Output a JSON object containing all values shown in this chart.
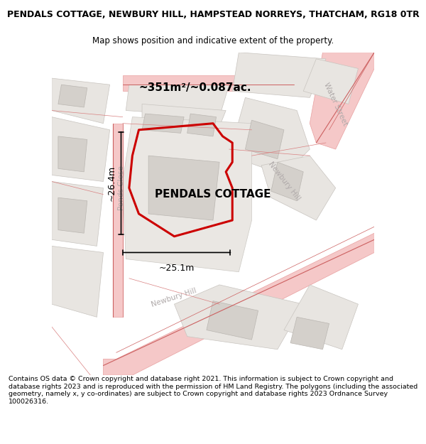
{
  "title_line1": "PENDALS COTTAGE, NEWBURY HILL, HAMPSTEAD NORREYS, THATCHAM, RG18 0TR",
  "title_line2": "Map shows position and indicative extent of the property.",
  "property_label": "PENDALS COTTAGE",
  "area_label": "~351m²/~0.087ac.",
  "dim_width": "~25.1m",
  "dim_height": "~26.4m",
  "footer_text": "Contains OS data © Crown copyright and database right 2021. This information is subject to Crown copyright and database rights 2023 and is reproduced with the permission of HM Land Registry. The polygons (including the associated geometry, namely x, y co-ordinates) are subject to Crown copyright and database rights 2023 Ordnance Survey 100026316.",
  "map_bg": "#f2f0ed",
  "road_fill": "#f5c8c8",
  "road_edge": "#e8a0a0",
  "parcel_fill": "#e8e5e1",
  "parcel_edge": "#c8c4bf",
  "building_fill": "#d4d0cb",
  "building_edge": "#bab6b1",
  "property_color": "#cc0000",
  "street_label_color": "#b0aaaa",
  "dim_color": "#000000",
  "title_fontsize": 9,
  "subtitle_fontsize": 8.5,
  "label_fontsize": 11,
  "area_fontsize": 11,
  "dim_fontsize": 9,
  "street_fontsize": 7.5
}
